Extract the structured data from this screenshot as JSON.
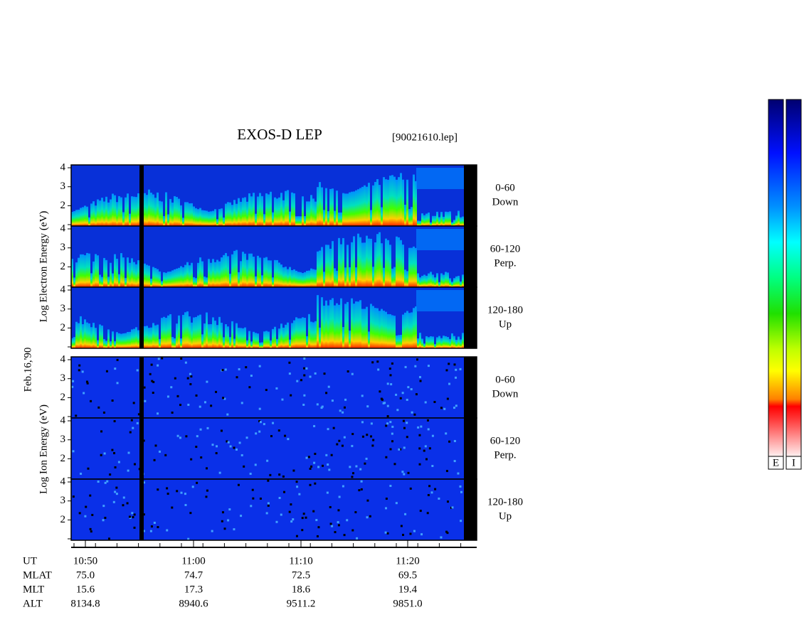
{
  "header": {
    "title": "EXOS-D LEP",
    "file": "[90021610.lep]"
  },
  "date": "Feb.16,'90",
  "energy_ticks": [
    4,
    3,
    2
  ],
  "electron": {
    "axis_label": "Log Electron Energy (eV)",
    "panels": [
      {
        "angle": "0-60",
        "direction": "Down"
      },
      {
        "angle": "60-120",
        "direction": "Perp."
      },
      {
        "angle": "120-180",
        "direction": "Up"
      }
    ]
  },
  "ion": {
    "axis_label": "Log Ion Energy (eV)",
    "panels": [
      {
        "angle": "0-60",
        "direction": "Down"
      },
      {
        "angle": "60-120",
        "direction": "Perp."
      },
      {
        "angle": "120-180",
        "direction": "Up"
      }
    ]
  },
  "time_axis": {
    "rows": [
      {
        "label": "UT",
        "values": [
          "10:50",
          "11:00",
          "11:10",
          "11:20"
        ]
      },
      {
        "label": "MLAT",
        "values": [
          "75.0",
          "74.7",
          "72.5",
          "69.5"
        ]
      },
      {
        "label": "MLT",
        "values": [
          "15.6",
          "17.3",
          "18.6",
          "19.4"
        ]
      },
      {
        "label": "ALT",
        "values": [
          "8134.8",
          "8940.6",
          "9511.2",
          "9851.0"
        ]
      }
    ]
  },
  "color_bars": [
    "E",
    "I"
  ]
}
